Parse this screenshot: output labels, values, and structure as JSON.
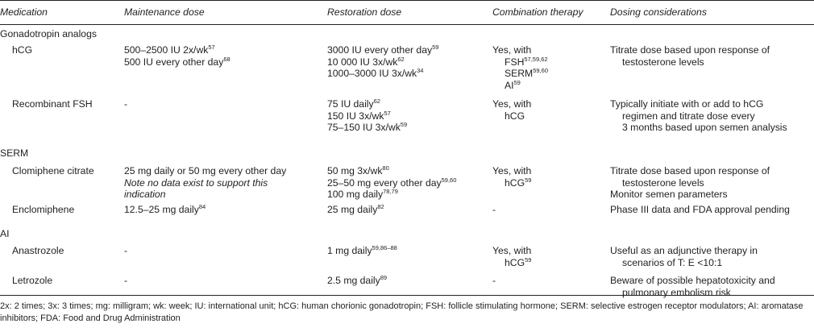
{
  "headers": {
    "medication": "Medication",
    "maintenance": "Maintenance dose",
    "restoration": "Restoration dose",
    "combination": "Combination therapy",
    "dosing": "Dosing considerations"
  },
  "sections": [
    {
      "category": "Gonadotropin analogs",
      "rows": [
        {
          "medication": "hCG",
          "maintenance": [
            {
              "text": "500–2500 IU 2x/wk",
              "ref": "57"
            },
            {
              "text": "500 IU every other day",
              "ref": "68"
            }
          ],
          "restoration": [
            {
              "text": "3000 IU every other day",
              "ref": "59"
            },
            {
              "text": "10 000 IU 3x/wk",
              "ref": "62"
            },
            {
              "text": "1000–3000 IU 3x/wk",
              "ref": "34"
            }
          ],
          "combination": {
            "lead": "Yes, with",
            "items": [
              {
                "text": "FSH",
                "ref": "57,59,62"
              },
              {
                "text": "SERM",
                "ref": "59,60"
              },
              {
                "text": "AI",
                "ref": "59"
              }
            ]
          },
          "dosing": [
            "Titrate dose based upon response of",
            "testosterone levels"
          ]
        },
        {
          "medication": "Recombinant FSH",
          "maintenance": [
            {
              "text": "-",
              "ref": ""
            }
          ],
          "restoration": [
            {
              "text": "75 IU daily",
              "ref": "62"
            },
            {
              "text": "150 IU 3x/wk",
              "ref": "57"
            },
            {
              "text": "75–150 IU 3x/wk",
              "ref": "59"
            }
          ],
          "combination": {
            "lead": "Yes, with",
            "items": [
              {
                "text": "hCG",
                "ref": ""
              }
            ]
          },
          "dosing": [
            "Typically initiate with or add to hCG",
            "regimen and titrate dose every",
            "3 months based upon semen analysis"
          ]
        }
      ]
    },
    {
      "category": "SERM",
      "rows": [
        {
          "medication": "Clomiphene citrate",
          "maintenance": [
            {
              "text": "25 mg daily or 50 mg every other day",
              "ref": ""
            }
          ],
          "maintenance_note": [
            "Note no data exist to support this",
            "indication"
          ],
          "restoration": [
            {
              "text": "50 mg 3x/wk",
              "ref": "80"
            },
            {
              "text": "25–50 mg every other day",
              "ref": "59,60"
            },
            {
              "text": "100 mg daily",
              "ref": "78,79"
            }
          ],
          "combination": {
            "lead": "Yes, with",
            "items": [
              {
                "text": "hCG",
                "ref": "59"
              }
            ]
          },
          "dosing": [
            "Titrate dose based upon response of",
            "testosterone levels",
            "Monitor semen parameters"
          ]
        },
        {
          "medication": "Enclomiphene",
          "maintenance": [
            {
              "text": "12.5–25 mg daily",
              "ref": "84"
            }
          ],
          "restoration": [
            {
              "text": "25 mg daily",
              "ref": "82"
            }
          ],
          "combination": {
            "lead": "-",
            "items": []
          },
          "dosing": [
            "Phase III data and FDA approval pending"
          ]
        }
      ]
    },
    {
      "category": "AI",
      "rows": [
        {
          "medication": "Anastrozole",
          "maintenance": [
            {
              "text": "-",
              "ref": ""
            }
          ],
          "restoration": [
            {
              "text": "1 mg daily",
              "ref": "59,86–88"
            }
          ],
          "combination": {
            "lead": "Yes, with",
            "items": [
              {
                "text": "hCG",
                "ref": "59"
              }
            ]
          },
          "dosing": [
            "Useful as an adjunctive therapy in",
            "scenarios of T: E <10:1"
          ]
        },
        {
          "medication": "Letrozole",
          "maintenance": [
            {
              "text": "-",
              "ref": ""
            }
          ],
          "restoration": [
            {
              "text": "2.5 mg daily",
              "ref": "89"
            }
          ],
          "combination": {
            "lead": "-",
            "items": []
          },
          "dosing": [
            "Beware of possible hepatotoxicity and",
            "pulmonary embolism risk"
          ]
        }
      ]
    }
  ],
  "footnote": "2x: 2 times; 3x: 3 times; mg: milligram; wk: week; IU: international unit; hCG: human chorionic gonadotropin; FSH: follicle stimulating hormone; SERM: selective estrogen receptor modulators; AI: aromatase inhibitors; FDA: Food and Drug Administration"
}
